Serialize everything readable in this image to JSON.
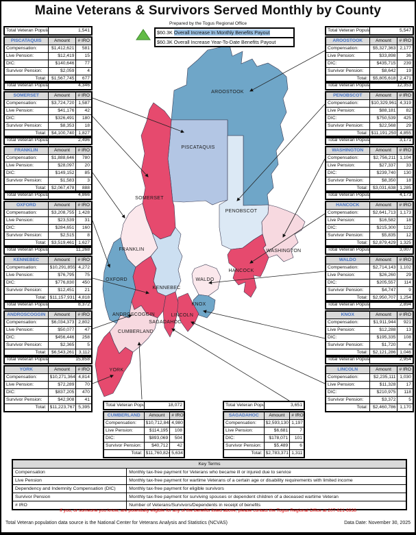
{
  "title": "Maine Veterans & Survivors Served Monthly by County",
  "subtitle": "Prepared by the Togus Regional Office",
  "banner": {
    "monthly_value": "$60.3K",
    "monthly_text": "Overall Increase In Monthly Benefits Payout",
    "ytd_text": "$60.3K Overall Increase Year-To-Date Benefits Payout",
    "highlight_color": "#9DC3E6",
    "triangle_color": "#62BB46"
  },
  "table_labels": {
    "population": "Total Veteran Population:",
    "amount": "Amount",
    "iro": "# IRO",
    "row_labels": [
      "Compensation:",
      "Live Pension:",
      "DIC:",
      "Survivor Pension:"
    ],
    "total": "Total:"
  },
  "counties": {
    "left": [
      {
        "name": "PISCATAQUIS",
        "population": "1,541",
        "rows": [
          [
            "$1,412,621",
            "581"
          ],
          [
            "$12,419",
            "15"
          ],
          [
            "$140,646",
            "77"
          ],
          [
            "$2,059",
            "4"
          ]
        ],
        "total": [
          "$1,567,745",
          "677"
        ]
      },
      {
        "name": "SOMERSET",
        "population": "4,346",
        "rows": [
          [
            "$3,724,720",
            "1,587"
          ],
          [
            "$41,176",
            "42"
          ],
          [
            "$326,491",
            "180"
          ],
          [
            "$8,353",
            "18"
          ]
        ],
        "total": [
          "$4,100,740",
          "1,827"
        ]
      },
      {
        "name": "FRANKLIN",
        "population": "2,496",
        "rows": [
          [
            "$1,888,646",
            "780"
          ],
          [
            "$28,097",
            "20"
          ],
          [
            "$149,152",
            "85"
          ],
          [
            "$1,583",
            "3"
          ]
        ],
        "total": [
          "$2,067,478",
          "888"
        ]
      },
      {
        "name": "OXFORD",
        "population": "4,866",
        "rows": [
          [
            "$3,208,755",
            "1,428"
          ],
          [
            "$23,539",
            "31"
          ],
          [
            "$284,651",
            "160"
          ],
          [
            "$2,515",
            "8"
          ]
        ],
        "total": [
          "$3,519,461",
          "1,627"
        ]
      },
      {
        "name": "KENNEBEC",
        "population": "11,268",
        "rows": [
          [
            "$10,291,855",
            "4,272"
          ],
          [
            "$76,795",
            "75"
          ],
          [
            "$776,830",
            "450"
          ],
          [
            "$12,451",
            "21"
          ]
        ],
        "total": [
          "$11,157,931",
          "4,818"
        ]
      },
      {
        "name": "ANDROSCOGGIN",
        "population": "8,372",
        "rows": [
          [
            "$6,034,373",
            "2,802"
          ],
          [
            "$50,077",
            "47"
          ],
          [
            "$456,446",
            "258"
          ],
          [
            "$2,365",
            "5"
          ]
        ],
        "total": [
          "$6,543,261",
          "3,112"
        ]
      },
      {
        "name": "YORK",
        "population": "15,858",
        "rows": [
          [
            "$10,271,364",
            "4,814"
          ],
          [
            "$72,289",
            "70"
          ],
          [
            "$837,205",
            "470"
          ],
          [
            "$42,908",
            "41"
          ]
        ],
        "total": [
          "$11,223,767",
          "5,395"
        ]
      }
    ],
    "right": [
      {
        "name": "AROOSTOOK",
        "population": "5,547",
        "rows": [
          [
            "$5,327,363",
            "2,177"
          ],
          [
            "$33,898",
            "36"
          ],
          [
            "$435,715",
            "239"
          ],
          [
            "$8,642",
            "19"
          ]
        ],
        "total": [
          "$5,805,618",
          "2,471"
        ]
      },
      {
        "name": "PENOBSCOT",
        "population": "12,353",
        "rows": [
          [
            "$10,329,961",
            "4,319"
          ],
          [
            "$88,181",
            "82"
          ],
          [
            "$750,539",
            "425"
          ],
          [
            "$22,568",
            "29"
          ]
        ],
        "total": [
          "$11,191,250",
          "4,855"
        ]
      },
      {
        "name": "WASHINGTON",
        "population": "3,171",
        "rows": [
          [
            "$2,756,211",
            "1,104"
          ],
          [
            "$27,337",
            "33"
          ],
          [
            "$239,740",
            "130"
          ],
          [
            "$8,350",
            "18"
          ]
        ],
        "total": [
          "$3,031,638",
          "1,285"
        ]
      },
      {
        "name": "HANCOCK",
        "population": "4,173",
        "rows": [
          [
            "$2,641,713",
            "1,173"
          ],
          [
            "$16,582",
            "18"
          ],
          [
            "$215,300",
            "122"
          ],
          [
            "$5,835",
            "12"
          ]
        ],
        "total": [
          "$2,879,429",
          "1,325"
        ]
      },
      {
        "name": "WALDO",
        "population": "3,007",
        "rows": [
          [
            "$2,714,143",
            "1,102"
          ],
          [
            "$26,260",
            "29"
          ],
          [
            "$205,557",
            "114"
          ],
          [
            "$4,747",
            "9"
          ]
        ],
        "total": [
          "$2,950,707",
          "1,254"
        ]
      },
      {
        "name": "KNOX",
        "population": "2,894",
        "rows": [
          [
            "$1,911,944",
            "921"
          ],
          [
            "$12,288",
            "13"
          ],
          [
            "$195,335",
            "108"
          ],
          [
            "$1,720",
            "4"
          ]
        ],
        "total": [
          "$2,121,286",
          "1,046"
        ]
      },
      {
        "name": "LINCOLN",
        "population": "2,954",
        "rows": [
          [
            "$2,235,111",
            "1,030"
          ],
          [
            "$11,328",
            "17"
          ],
          [
            "$210,975",
            "118"
          ],
          [
            "$3,372",
            "5"
          ]
        ],
        "total": [
          "$2,460,786",
          "1,170"
        ]
      }
    ],
    "bottom": [
      {
        "name": "CUMBERLAND",
        "population": "18,072",
        "rows": [
          [
            "$10,712,848",
            "4,980"
          ],
          [
            "$114,195",
            "108"
          ],
          [
            "$893,069",
            "504"
          ],
          [
            "$40,712",
            "42"
          ]
        ],
        "total": [
          "$11,760,824",
          "5,634"
        ]
      },
      {
        "name": "SAGADAHOC",
        "population": "3,651",
        "rows": [
          [
            "$2,593,130",
            "1,197"
          ],
          [
            "$6,681",
            "7"
          ],
          [
            "$178,071",
            "101"
          ],
          [
            "$5,489",
            "6"
          ]
        ],
        "total": [
          "$2,783,371",
          "1,311"
        ]
      }
    ]
  },
  "map": {
    "fills": {
      "blue": "#6FA6C8",
      "periwinkle": "#B3C6E4",
      "paleblue": "#DCE9F5",
      "lightblue": "#CCDFF1",
      "red": "#E64A6E",
      "pink": "#F7D9E0",
      "palepink": "#FBE8EC"
    },
    "labels": [
      {
        "text": "AROOSTOOK"
      },
      {
        "text": "PISCATAQUIS"
      },
      {
        "text": "SOMERSET"
      },
      {
        "text": "PENOBSCOT"
      },
      {
        "text": "FRANKLIN"
      },
      {
        "text": "WASHINGTON"
      },
      {
        "text": "HANCOCK"
      },
      {
        "text": "OXFORD"
      },
      {
        "text": "KENNEBEC"
      },
      {
        "text": "WALDO"
      },
      {
        "text": "KNOX"
      },
      {
        "text": "ANDROSCOGGIN"
      },
      {
        "text": "LINCOLN"
      },
      {
        "text": "SAGADAHOC"
      },
      {
        "text": "CUMBERLAND"
      },
      {
        "text": "YORK"
      }
    ]
  },
  "key_terms": {
    "title": "Key Terms",
    "rows": [
      [
        "Compensation",
        "Monthly tax-free payment for Veterans who became ill or injured due to service"
      ],
      [
        "Live Pension",
        "Monthly tax-free payment for wartime Veterans of a certain age or disability requirements with limited income"
      ],
      [
        "Dependency and Indemnity Compensation (DIC)",
        "Monthly tax-free payment for eligible survivors"
      ],
      [
        "Survivor Pension",
        "Monthly tax-free payment for surviving spouses or dependent children of a deceased wartime Veteran"
      ],
      [
        "# IRO",
        "Number of Veterans/Survivors/Dependents in receipt of benefits"
      ]
    ]
  },
  "contact": "If you, or someone you know, are potentially eligible for any of the benefits listed above, please contact the Togus Regional Office at 207-621-6938",
  "footer": {
    "source": "Total Veteran population data source is the National Center for Veterans Analysis and Statistics (NCVAS)",
    "date": "Data Date: November 30, 2025"
  }
}
